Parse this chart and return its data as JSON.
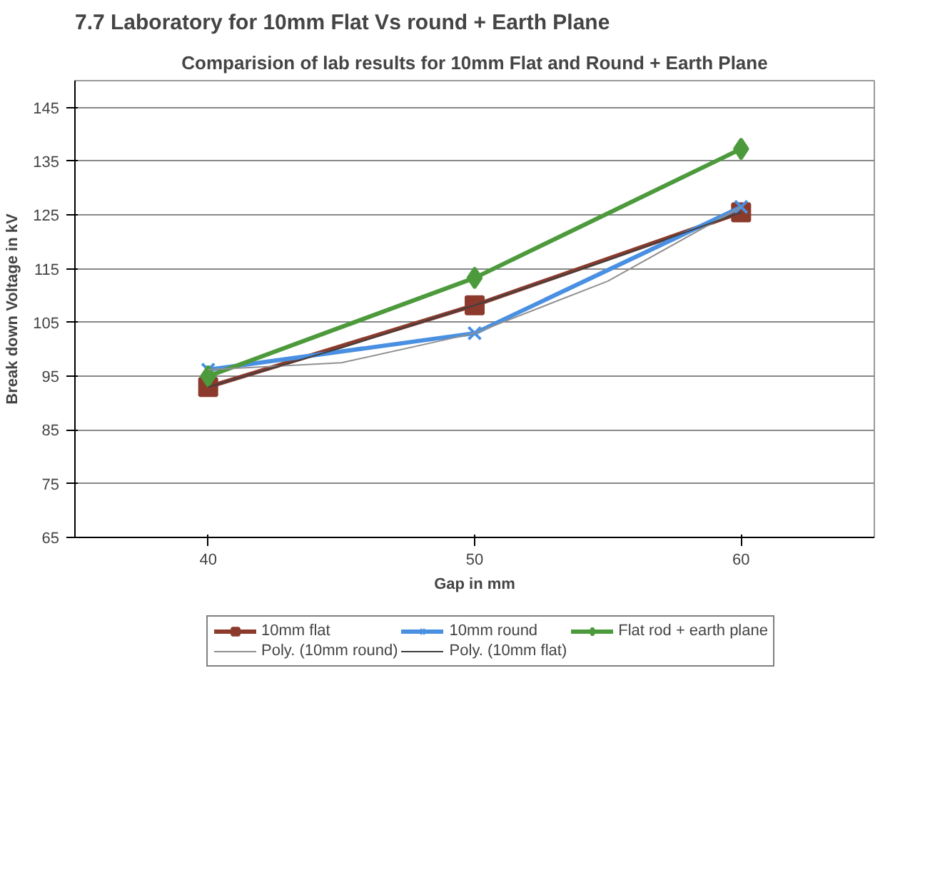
{
  "chart_data": {
    "type": "line",
    "title": "Comparision of lab results for 10mm Flat and Round + Earth Plane",
    "xlabel": "Gap in mm",
    "ylabel": "Break down Voltage in kV",
    "annotations": [
      "7.7      Laboratory for 10mm Flat Vs round + Earth Plane"
    ],
    "x": [
      40,
      50,
      60
    ],
    "xlim": [
      35,
      65
    ],
    "xticks": [
      40,
      50,
      60
    ],
    "ylim": [
      65,
      150
    ],
    "yticks": [
      65,
      75,
      85,
      95,
      105,
      115,
      125,
      135,
      145
    ],
    "grid": "y",
    "legend": "bottom",
    "series": [
      {
        "name": "10mm flat",
        "color": "#8b3a2c",
        "values": [
          93,
          108.2,
          125.5
        ],
        "marker": "square"
      },
      {
        "name": "10mm round",
        "color": "#4a90e2",
        "values": [
          96.2,
          103,
          126.5
        ],
        "marker": "cross"
      },
      {
        "name": "Flat rod + earth plane",
        "color": "#4c9a3c",
        "values": [
          95,
          113.3,
          137.3
        ],
        "marker": "diamond"
      },
      {
        "name": "Poly. (10mm round)",
        "color": "#909090",
        "x": [
          40,
          45,
          50,
          55,
          60
        ],
        "values": [
          96.2,
          97.5,
          103,
          112.7,
          126.5
        ],
        "marker": "none"
      },
      {
        "name": "Poly. (10mm flat)",
        "color": "#404040",
        "x": [
          40,
          45,
          50,
          55,
          60
        ],
        "values": [
          93,
          100.3,
          108.2,
          116.6,
          125.5
        ],
        "marker": "none"
      }
    ]
  }
}
